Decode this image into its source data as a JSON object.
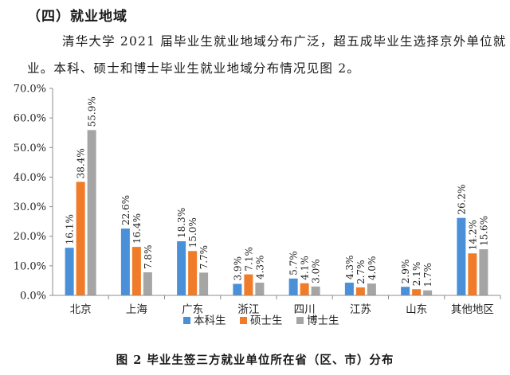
{
  "section_heading": "（四）就业地域",
  "paragraph": {
    "line1": "清华大学 2021 届毕业生就业地域分布广泛，超五成毕业生选择京外单位就",
    "line2": "业。本科、硕士和博士毕业生就业地域分布情况见图 2。"
  },
  "figure_caption": "图 2 毕业生签三方就业单位所在省（区、市）分布",
  "chart_data": {
    "type": "bar",
    "categories": [
      "北京",
      "上海",
      "广东",
      "浙江",
      "四川",
      "江苏",
      "山东",
      "其他地区"
    ],
    "series": [
      {
        "name": "本科生",
        "color": "#4a90d9",
        "values": [
          16.1,
          22.6,
          18.3,
          3.9,
          5.7,
          4.3,
          2.9,
          26.2
        ],
        "labels": [
          "16.1%",
          "22.6%",
          "18.3%",
          "3.9%",
          "5.7%",
          "4.3%",
          "2.9%",
          "26.2%"
        ]
      },
      {
        "name": "硕士生",
        "color": "#f07c2a",
        "values": [
          38.4,
          16.4,
          15.0,
          7.1,
          4.1,
          2.7,
          2.1,
          14.2
        ],
        "labels": [
          "38.4%",
          "16.4%",
          "15.0%",
          "7.1%",
          "4.1%",
          "2.7%",
          "2.1%",
          "14.2%"
        ]
      },
      {
        "name": "博士生",
        "color": "#a5a5a5",
        "values": [
          55.9,
          7.8,
          7.7,
          4.3,
          3.0,
          4.0,
          1.7,
          15.6
        ],
        "labels": [
          "55.9%",
          "7.8%",
          "7.7%",
          "4.3%",
          "3.0%",
          "4.0%",
          "1.7%",
          "15.6%"
        ]
      }
    ],
    "ylim": [
      0,
      70
    ],
    "yticks": [
      "0.0%",
      "10.0%",
      "20.0%",
      "30.0%",
      "40.0%",
      "50.0%",
      "60.0%",
      "70.0%"
    ],
    "grid": false,
    "legend_position": "bottom"
  }
}
